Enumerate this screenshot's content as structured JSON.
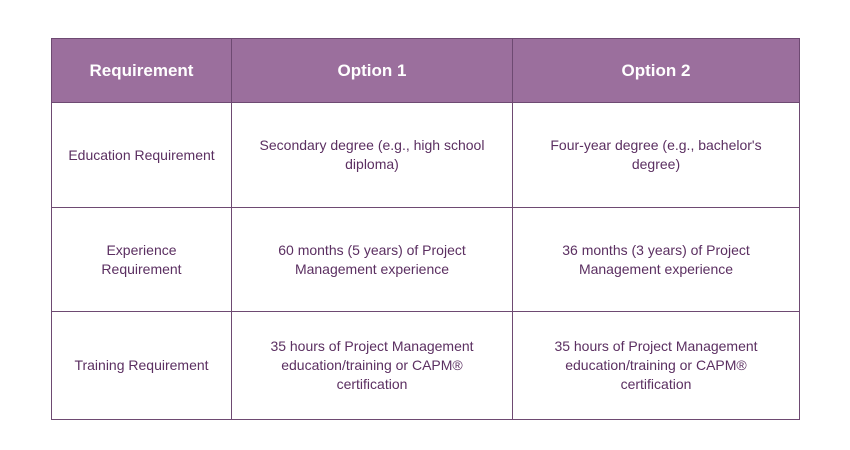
{
  "table": {
    "header": [
      "Requirement",
      "Option 1",
      "Option 2"
    ],
    "rows": [
      [
        "Education Requirement",
        "Secondary degree (e.g., high school diploma)",
        "Four-year degree (e.g., bachelor's degree)"
      ],
      [
        "Experience Requirement",
        "60 months (5 years) of Project Management experience",
        "36 months (3 years) of Project Management experience"
      ],
      [
        "Training Requirement",
        "35 hours of Project Management education/training or CAPM® certification",
        "35 hours of Project Management education/training or CAPM® certification"
      ]
    ]
  }
}
